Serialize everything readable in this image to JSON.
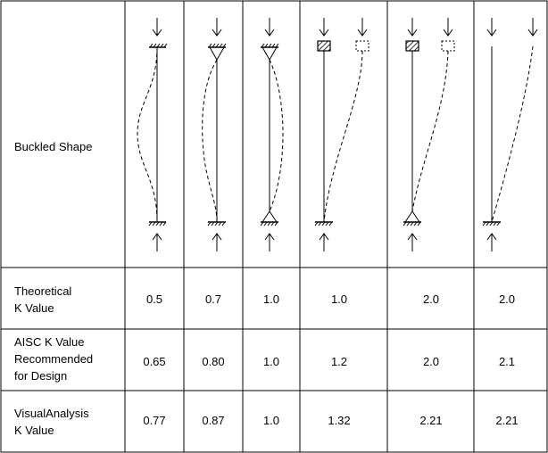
{
  "rows": {
    "shape_label": "Buckled Shape",
    "theoretical": {
      "label_line1": "Theoretical",
      "label_line2": "K Value",
      "values": [
        "0.5",
        "0.7",
        "1.0",
        "1.0",
        "2.0",
        "2.0"
      ]
    },
    "aisc": {
      "label_line1": "AISC K Value",
      "label_line2": "Recommended",
      "label_line3": "for Design",
      "values": [
        "0.65",
        "0.80",
        "1.0",
        "1.2",
        "2.0",
        "2.1"
      ]
    },
    "visualanalysis": {
      "label_line1": "VisualAnalysis",
      "label_line2": "K Value",
      "values": [
        "0.77",
        "0.87",
        "1.0",
        "1.32",
        "2.21",
        "2.21"
      ]
    }
  },
  "columns": [
    {
      "top_support": "fixed",
      "bottom_support": "fixed",
      "buckled_shape": "double-curvature"
    },
    {
      "top_support": "pinned",
      "bottom_support": "fixed",
      "buckled_shape": "single-curvature-fixed-pinned"
    },
    {
      "top_support": "pinned",
      "bottom_support": "pinned",
      "buckled_shape": "single-curvature"
    },
    {
      "top_support": "rotation-fixed-translation-free",
      "bottom_support": "fixed",
      "buckled_shape": "sway"
    },
    {
      "top_support": "rotation-fixed-translation-free",
      "bottom_support": "pinned",
      "buckled_shape": "sway"
    },
    {
      "top_support": "free",
      "bottom_support": "fixed",
      "buckled_shape": "cantilever"
    }
  ],
  "style": {
    "line_color": "#000000",
    "background": "#ffffff"
  }
}
